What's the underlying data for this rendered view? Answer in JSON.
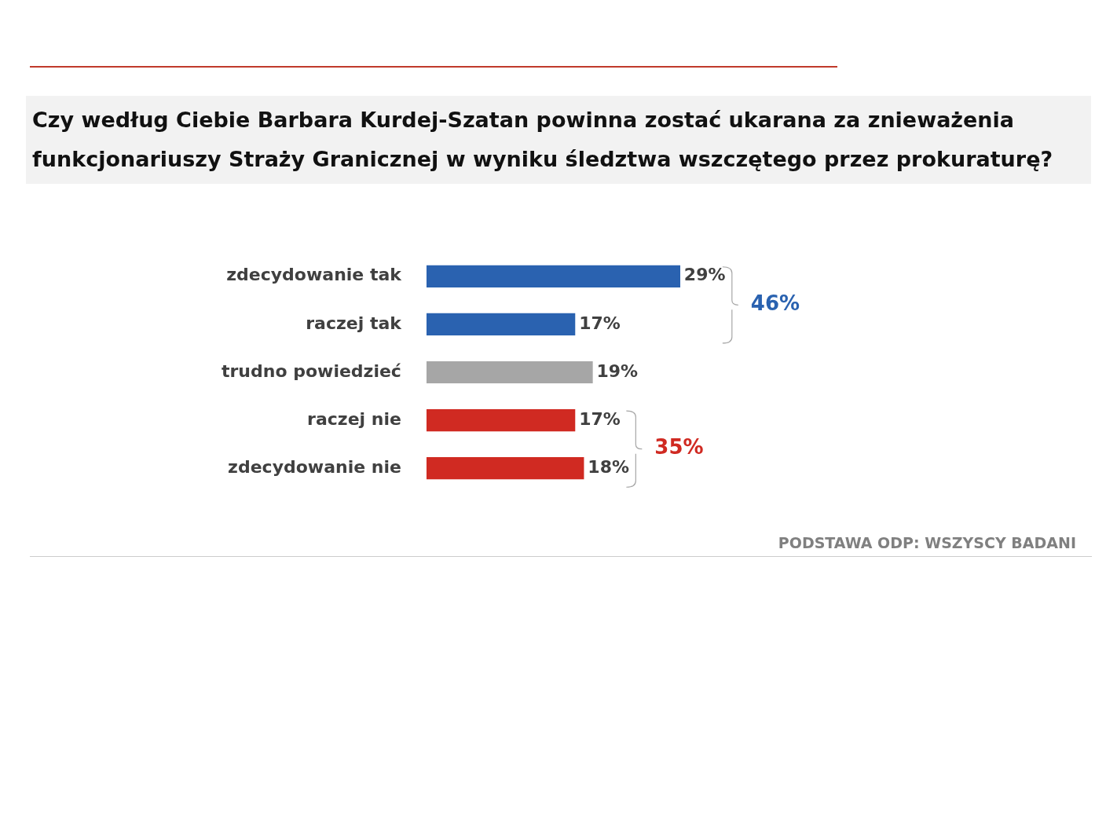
{
  "chart_data": {
    "type": "bar",
    "orientation": "horizontal",
    "title": "Czy według Ciebie Barbara Kurdej-Szatan powinna zostać ukarana za znieważenia funkcjonariuszy Straży Granicznej w wyniku śledztwa wszczętego przez prokuraturę?",
    "categories": [
      "zdecydowanie tak",
      "raczej tak",
      "trudno powiedzieć",
      "raczej nie",
      "zdecydowanie nie"
    ],
    "values": [
      29,
      17,
      19,
      17,
      18
    ],
    "colors": [
      "#2a62b0",
      "#2a62b0",
      "#a6a6a6",
      "#d02a22",
      "#d02a22"
    ],
    "value_labels": [
      "29%",
      "17%",
      "19%",
      "17%",
      "18%"
    ],
    "annotations": [
      "46%",
      "35%",
      "PODSTAWA ODP: WSZYSCY BADANI"
    ],
    "legend": false
  }
}
